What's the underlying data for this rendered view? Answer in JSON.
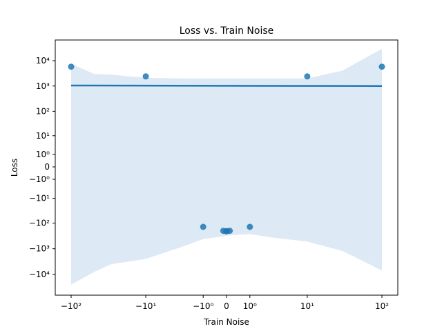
{
  "chart_data": {
    "type": "scatter",
    "title": "Loss vs. Train Noise",
    "xlabel": "Train Noise",
    "ylabel": "Loss",
    "x_scale": "symlog",
    "y_scale": "symlog",
    "xlim": [
      -200,
      200
    ],
    "ylim": [
      -50000,
      50000
    ],
    "x_ticks": [
      {
        "value": -100,
        "label": "−10²"
      },
      {
        "value": -10,
        "label": "−10¹"
      },
      {
        "value": -1,
        "label": "−10⁰"
      },
      {
        "value": 0,
        "label": "0"
      },
      {
        "value": 1,
        "label": "10⁰"
      },
      {
        "value": 10,
        "label": "10¹"
      },
      {
        "value": 100,
        "label": "10²"
      }
    ],
    "y_ticks": [
      {
        "value": 10000,
        "label": "10⁴"
      },
      {
        "value": 1000,
        "label": "10³"
      },
      {
        "value": 100,
        "label": "10²"
      },
      {
        "value": 10,
        "label": "10¹"
      },
      {
        "value": 1,
        "label": "10⁰"
      },
      {
        "value": 0,
        "label": "0"
      },
      {
        "value": -1,
        "label": "−10⁰"
      },
      {
        "value": -10,
        "label": "−10¹"
      },
      {
        "value": -100,
        "label": "−10²"
      },
      {
        "value": -1000,
        "label": "−10³"
      },
      {
        "value": -10000,
        "label": "−10⁴"
      }
    ],
    "points": [
      {
        "x": -100,
        "y": 5800
      },
      {
        "x": -10,
        "y": 2400
      },
      {
        "x": -1,
        "y": -140
      },
      {
        "x": -0.1,
        "y": -200
      },
      {
        "x": -0.01,
        "y": -210
      },
      {
        "x": 0.01,
        "y": -205
      },
      {
        "x": 0.1,
        "y": -200
      },
      {
        "x": 1,
        "y": -140
      },
      {
        "x": 10,
        "y": 2400
      },
      {
        "x": 100,
        "y": 5800
      }
    ],
    "regression_line": {
      "x": [
        -100,
        100
      ],
      "y": [
        1050,
        1000
      ]
    },
    "confidence_band": {
      "x": [
        -100,
        -50,
        -30,
        -10,
        -3,
        -1,
        -0.3,
        0,
        0.3,
        1,
        3,
        10,
        30,
        100
      ],
      "upper": [
        7500,
        3000,
        2800,
        2100,
        2000,
        2000,
        2000,
        2000,
        2000,
        2000,
        2000,
        2000,
        4000,
        25000
      ],
      "lower": [
        -22000,
        -8000,
        -4000,
        -2500,
        -900,
        -420,
        -350,
        -310,
        -290,
        -270,
        -370,
        -530,
        -1200,
        -7000
      ]
    },
    "colors": {
      "points": "#1f77b4",
      "line": "#1f77b4",
      "band": "#c6dbef"
    }
  }
}
